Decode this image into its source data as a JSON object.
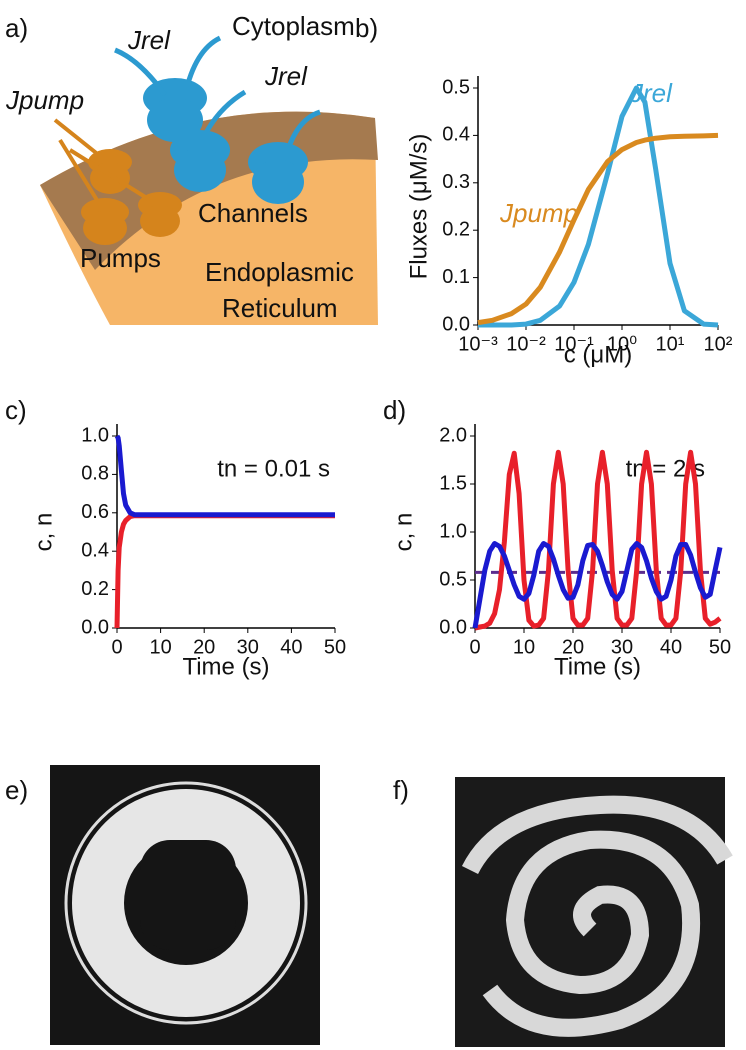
{
  "panels": {
    "a": "a)",
    "b": "b)",
    "c": "c)",
    "d": "d)",
    "e": "e)",
    "f": "f)"
  },
  "diagram": {
    "cytoplasm": "Cytoplasm",
    "jrel_1": "Jrel",
    "jrel_2": "Jrel",
    "jpump": "Jpump",
    "channels": "Channels",
    "pumps": "Pumps",
    "er_1": "Endoplasmic",
    "er_2": "Reticulum"
  },
  "chart_data": [
    {
      "type": "line",
      "xscale": "log",
      "xlabel": "c (μM)",
      "ylabel": "Fluxes (μM/s)",
      "x": [
        0.001,
        0.002,
        0.005,
        0.01,
        0.02,
        0.05,
        0.1,
        0.2,
        0.5,
        1,
        2,
        3,
        5,
        10,
        20,
        50,
        100
      ],
      "xlim": [
        0.001,
        100
      ],
      "xticks": [
        {
          "value": 0.001,
          "label": "10⁻³"
        },
        {
          "value": 0.01,
          "label": "10⁻²"
        },
        {
          "value": 0.1,
          "label": "10⁻¹"
        },
        {
          "value": 1,
          "label": "10⁰"
        },
        {
          "value": 10,
          "label": "10¹"
        },
        {
          "value": 100,
          "label": "10²"
        }
      ],
      "ylim": [
        0,
        0.5
      ],
      "yticks": [
        {
          "value": 0,
          "label": "0.0"
        },
        0.1,
        0.2,
        0.3,
        0.4,
        0.5
      ],
      "series": [
        {
          "name": "Jrel",
          "color": "#3ba7d8",
          "values": [
            0,
            0,
            0,
            0.002,
            0.01,
            0.04,
            0.09,
            0.17,
            0.32,
            0.44,
            0.5,
            0.47,
            0.33,
            0.13,
            0.03,
            0.002,
            0
          ]
        },
        {
          "name": "Jpump",
          "color": "#d98a1f",
          "values": [
            0.005,
            0.01,
            0.024,
            0.044,
            0.08,
            0.154,
            0.222,
            0.286,
            0.345,
            0.37,
            0.385,
            0.39,
            0.394,
            0.397,
            0.398,
            0.399,
            0.4
          ]
        }
      ]
    },
    {
      "type": "line",
      "xlabel": "Time (s)",
      "ylabel": "c, n",
      "annotation": "tn = 0.01 s",
      "x": [
        0,
        0.25,
        0.5,
        1,
        1.5,
        2,
        3,
        4,
        5,
        10,
        20,
        30,
        40,
        50
      ],
      "xlim": [
        0,
        50
      ],
      "xticks": [
        0,
        10,
        20,
        30,
        40,
        50
      ],
      "ylim": [
        0,
        1
      ],
      "yticks": [
        {
          "value": 0,
          "label": "0.0"
        },
        0.2,
        0.4,
        0.6,
        0.8,
        {
          "value": 1,
          "label": "1.0"
        }
      ],
      "series": [
        {
          "color": "#e8202a",
          "values": [
            0,
            0.3,
            0.42,
            0.5,
            0.54,
            0.56,
            0.58,
            0.585,
            0.585,
            0.585,
            0.585,
            0.585,
            0.585,
            0.585
          ]
        },
        {
          "color": "#1a1ad0",
          "values": [
            1,
            0.99,
            0.95,
            0.82,
            0.7,
            0.64,
            0.6,
            0.59,
            0.59,
            0.59,
            0.59,
            0.59,
            0.59,
            0.59
          ]
        }
      ]
    },
    {
      "type": "line",
      "xlabel": "Time (s)",
      "ylabel": "c, n",
      "annotation": "tn = 2 s",
      "x": [
        0,
        1,
        2,
        3,
        4,
        5,
        6,
        7,
        8,
        9,
        10,
        11,
        12,
        13,
        14,
        15,
        16,
        17,
        18,
        19,
        20,
        21,
        22,
        23,
        24,
        25,
        26,
        27,
        28,
        29,
        30,
        31,
        32,
        33,
        34,
        35,
        36,
        37,
        38,
        39,
        40,
        41,
        42,
        43,
        44,
        45,
        46,
        47,
        48,
        49,
        50
      ],
      "xlim": [
        0,
        50
      ],
      "xticks": [
        0,
        10,
        20,
        30,
        40,
        50
      ],
      "ylim": [
        0,
        2
      ],
      "yticks": [
        {
          "value": 0,
          "label": "0.0"
        },
        0.5,
        {
          "value": 1,
          "label": "1.0"
        },
        1.5,
        {
          "value": 2,
          "label": "2.0"
        }
      ],
      "hline": {
        "value": 0.58,
        "color": "#5b2d8e"
      },
      "series": [
        {
          "color": "#e8202a",
          "values": [
            0,
            0.01,
            0.02,
            0.05,
            0.15,
            0.4,
            0.9,
            1.6,
            1.82,
            1.4,
            0.5,
            0.08,
            0.02,
            0.03,
            0.1,
            0.6,
            1.5,
            1.83,
            1.5,
            0.6,
            0.1,
            0.03,
            0.03,
            0.1,
            0.6,
            1.5,
            1.83,
            1.5,
            0.6,
            0.1,
            0.03,
            0.03,
            0.1,
            0.6,
            1.5,
            1.83,
            1.5,
            0.6,
            0.1,
            0.03,
            0.03,
            0.1,
            0.6,
            1.5,
            1.83,
            1.5,
            0.6,
            0.1,
            0.04,
            0.06,
            0.1
          ]
        },
        {
          "color": "#1a1ad0",
          "values": [
            0,
            0.3,
            0.6,
            0.8,
            0.88,
            0.85,
            0.75,
            0.6,
            0.45,
            0.33,
            0.3,
            0.36,
            0.55,
            0.8,
            0.88,
            0.85,
            0.72,
            0.55,
            0.4,
            0.31,
            0.32,
            0.45,
            0.7,
            0.86,
            0.87,
            0.8,
            0.65,
            0.48,
            0.35,
            0.3,
            0.38,
            0.6,
            0.82,
            0.88,
            0.84,
            0.7,
            0.52,
            0.38,
            0.3,
            0.33,
            0.5,
            0.75,
            0.87,
            0.87,
            0.76,
            0.58,
            0.42,
            0.32,
            0.35,
            0.6,
            0.84
          ]
        }
      ]
    }
  ]
}
